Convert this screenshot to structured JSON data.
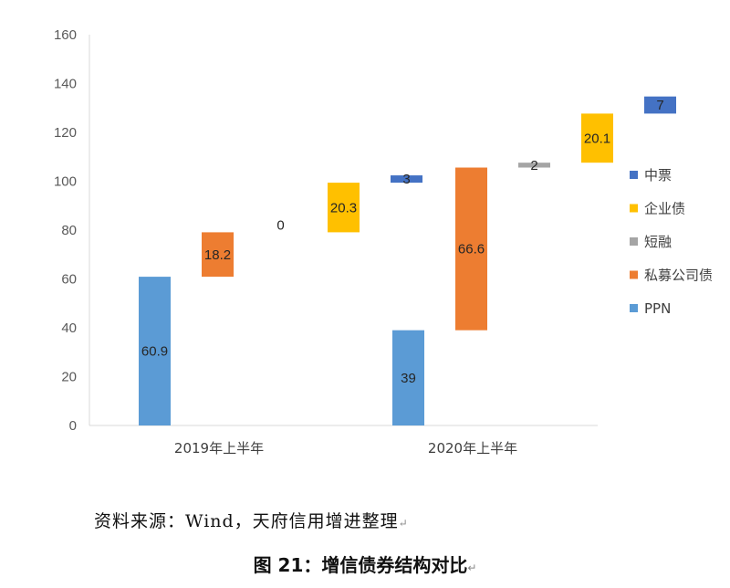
{
  "chart_data": {
    "type": "bar",
    "subtype": "stacked-waterfall",
    "title": "",
    "xlabel": "",
    "ylabel": "",
    "ylim": [
      0,
      160
    ],
    "yticks": [
      0,
      20,
      40,
      60,
      80,
      100,
      120,
      140,
      160
    ],
    "categories": [
      "2019年上半年",
      "2020年上半年"
    ],
    "legend_position": "right",
    "grid": false,
    "series": [
      {
        "name": "PPN",
        "color": "#5B9BD5",
        "values": [
          60.9,
          39
        ]
      },
      {
        "name": "私募公司债",
        "color": "#ED7D31",
        "values": [
          18.2,
          66.6
        ]
      },
      {
        "name": "短融",
        "color": "#A5A5A5",
        "values": [
          0,
          2
        ]
      },
      {
        "name": "企业债",
        "color": "#FFC000",
        "values": [
          20.3,
          20.1
        ]
      },
      {
        "name": "中票",
        "color": "#4472C4",
        "values": [
          3,
          7
        ]
      }
    ],
    "legend_order": [
      "中票",
      "企业债",
      "短融",
      "私募公司债",
      "PPN"
    ]
  },
  "footer": {
    "source": "资料来源：Wind，天府信用增进整理",
    "caption": "图 21：增信债券结构对比"
  }
}
